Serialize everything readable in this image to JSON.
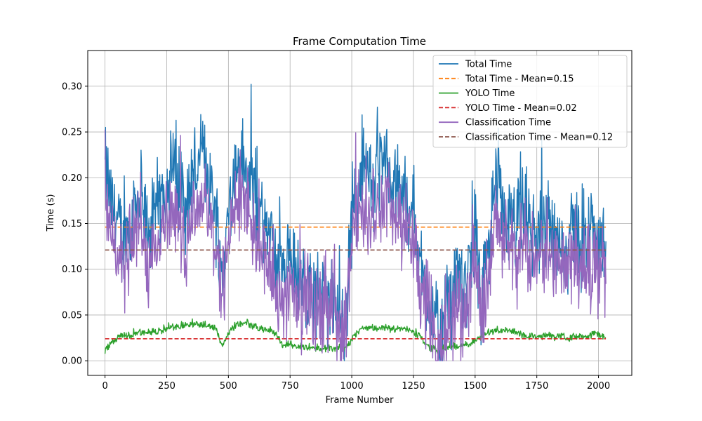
{
  "chart_data": {
    "type": "line",
    "title": "Frame Computation Time",
    "xlabel": "Frame Number",
    "ylabel": "Time (s)",
    "xlim": [
      -70,
      2135
    ],
    "ylim": [
      -0.016,
      0.339
    ],
    "xticks": [
      0,
      250,
      500,
      750,
      1000,
      1250,
      1500,
      1750,
      2000
    ],
    "yticks": [
      0.0,
      0.05,
      0.1,
      0.15,
      0.2,
      0.25,
      0.3
    ],
    "ytick_labels": [
      "0.00",
      "0.05",
      "0.10",
      "0.15",
      "0.20",
      "0.25",
      "0.30"
    ],
    "grid": true,
    "legend_position": "top-right",
    "frame_count": 2030,
    "series": [
      {
        "name": "Total Time",
        "style": "solid",
        "color": "#1f77b4",
        "x": [
          0,
          25,
          50,
          75,
          100,
          125,
          150,
          175,
          200,
          225,
          250,
          275,
          300,
          325,
          350,
          375,
          400,
          425,
          450,
          475,
          500,
          525,
          550,
          575,
          600,
          625,
          650,
          675,
          700,
          725,
          750,
          775,
          800,
          825,
          850,
          875,
          900,
          925,
          950,
          975,
          1000,
          1025,
          1050,
          1075,
          1100,
          1125,
          1150,
          1175,
          1200,
          1225,
          1250,
          1275,
          1300,
          1325,
          1350,
          1375,
          1400,
          1425,
          1450,
          1475,
          1500,
          1525,
          1550,
          1575,
          1600,
          1625,
          1650,
          1675,
          1700,
          1725,
          1750,
          1775,
          1800,
          1825,
          1850,
          1875,
          1900,
          1925,
          1950,
          1975,
          2000,
          2030
        ],
        "y": [
          0.21,
          0.17,
          0.15,
          0.13,
          0.15,
          0.18,
          0.16,
          0.14,
          0.15,
          0.17,
          0.2,
          0.21,
          0.19,
          0.17,
          0.2,
          0.21,
          0.22,
          0.2,
          0.16,
          0.09,
          0.16,
          0.2,
          0.22,
          0.2,
          0.19,
          0.17,
          0.14,
          0.13,
          0.1,
          0.09,
          0.11,
          0.09,
          0.08,
          0.09,
          0.06,
          0.08,
          0.06,
          0.07,
          0.04,
          0.03,
          0.16,
          0.19,
          0.21,
          0.2,
          0.2,
          0.21,
          0.2,
          0.18,
          0.19,
          0.17,
          0.16,
          0.11,
          0.08,
          0.05,
          0.03,
          0.04,
          0.06,
          0.09,
          0.07,
          0.1,
          0.15,
          0.07,
          0.1,
          0.18,
          0.17,
          0.16,
          0.14,
          0.15,
          0.16,
          0.14,
          0.13,
          0.15,
          0.14,
          0.13,
          0.13,
          0.12,
          0.15,
          0.13,
          0.12,
          0.14,
          0.13,
          0.13
        ]
      },
      {
        "name": "Total Time - Mean=0.15",
        "style": "dashed",
        "color": "#ff7f0e",
        "x": [
          0,
          2030
        ],
        "y": [
          0.146,
          0.146
        ]
      },
      {
        "name": "YOLO Time",
        "style": "solid",
        "color": "#2ca02c",
        "x": [
          0,
          25,
          50,
          75,
          100,
          125,
          150,
          175,
          200,
          225,
          250,
          275,
          300,
          325,
          350,
          375,
          400,
          425,
          450,
          475,
          500,
          525,
          550,
          575,
          600,
          625,
          650,
          675,
          700,
          725,
          750,
          775,
          800,
          825,
          850,
          875,
          900,
          925,
          950,
          975,
          1000,
          1025,
          1050,
          1075,
          1100,
          1125,
          1150,
          1175,
          1200,
          1225,
          1250,
          1275,
          1300,
          1325,
          1350,
          1375,
          1400,
          1425,
          1450,
          1475,
          1500,
          1525,
          1550,
          1575,
          1600,
          1625,
          1650,
          1675,
          1700,
          1725,
          1750,
          1775,
          1800,
          1825,
          1850,
          1875,
          1900,
          1925,
          1950,
          1975,
          2000,
          2030
        ],
        "y": [
          0.01,
          0.02,
          0.026,
          0.027,
          0.028,
          0.03,
          0.031,
          0.03,
          0.031,
          0.032,
          0.035,
          0.037,
          0.038,
          0.039,
          0.04,
          0.04,
          0.039,
          0.038,
          0.036,
          0.016,
          0.03,
          0.038,
          0.04,
          0.041,
          0.038,
          0.036,
          0.034,
          0.033,
          0.026,
          0.016,
          0.018,
          0.015,
          0.016,
          0.014,
          0.015,
          0.013,
          0.014,
          0.013,
          0.014,
          0.013,
          0.024,
          0.033,
          0.035,
          0.036,
          0.034,
          0.036,
          0.035,
          0.034,
          0.035,
          0.034,
          0.032,
          0.028,
          0.018,
          0.014,
          0.012,
          0.014,
          0.015,
          0.016,
          0.018,
          0.016,
          0.022,
          0.026,
          0.03,
          0.032,
          0.033,
          0.033,
          0.032,
          0.031,
          0.026,
          0.027,
          0.026,
          0.027,
          0.028,
          0.026,
          0.028,
          0.025,
          0.026,
          0.027,
          0.025,
          0.028,
          0.03,
          0.025
        ]
      },
      {
        "name": "YOLO Time - Mean=0.02",
        "style": "dashed",
        "color": "#d62728",
        "x": [
          0,
          2030
        ],
        "y": [
          0.024,
          0.024
        ]
      },
      {
        "name": "Classification Time",
        "style": "solid",
        "color": "#9467bd",
        "x": [
          0,
          25,
          50,
          75,
          100,
          125,
          150,
          175,
          200,
          225,
          250,
          275,
          300,
          325,
          350,
          375,
          400,
          425,
          450,
          475,
          500,
          525,
          550,
          575,
          600,
          625,
          650,
          675,
          700,
          725,
          750,
          775,
          800,
          825,
          850,
          875,
          900,
          925,
          950,
          975,
          1000,
          1025,
          1050,
          1075,
          1100,
          1125,
          1150,
          1175,
          1200,
          1225,
          1250,
          1275,
          1300,
          1325,
          1350,
          1375,
          1400,
          1425,
          1450,
          1475,
          1500,
          1525,
          1550,
          1575,
          1600,
          1625,
          1650,
          1675,
          1700,
          1725,
          1750,
          1775,
          1800,
          1825,
          1850,
          1875,
          1900,
          1925,
          1950,
          1975,
          2000,
          2030
        ],
        "y": [
          0.2,
          0.15,
          0.12,
          0.1,
          0.12,
          0.15,
          0.13,
          0.11,
          0.12,
          0.14,
          0.16,
          0.17,
          0.15,
          0.13,
          0.16,
          0.17,
          0.18,
          0.16,
          0.12,
          0.07,
          0.13,
          0.16,
          0.18,
          0.16,
          0.15,
          0.13,
          0.11,
          0.1,
          0.07,
          0.07,
          0.09,
          0.07,
          0.06,
          0.07,
          0.05,
          0.06,
          0.05,
          0.06,
          0.03,
          0.02,
          0.13,
          0.16,
          0.17,
          0.16,
          0.17,
          0.17,
          0.16,
          0.15,
          0.15,
          0.14,
          0.13,
          0.08,
          0.06,
          0.03,
          0.01,
          0.02,
          0.04,
          0.07,
          0.05,
          0.08,
          0.12,
          0.04,
          0.07,
          0.14,
          0.14,
          0.13,
          0.11,
          0.12,
          0.13,
          0.11,
          0.1,
          0.12,
          0.11,
          0.1,
          0.1,
          0.1,
          0.12,
          0.1,
          0.1,
          0.11,
          0.1,
          0.1
        ]
      },
      {
        "name": "Classification Time - Mean=0.12",
        "style": "dashed",
        "color": "#8c564b",
        "x": [
          0,
          2030
        ],
        "y": [
          0.121,
          0.121
        ]
      }
    ]
  }
}
